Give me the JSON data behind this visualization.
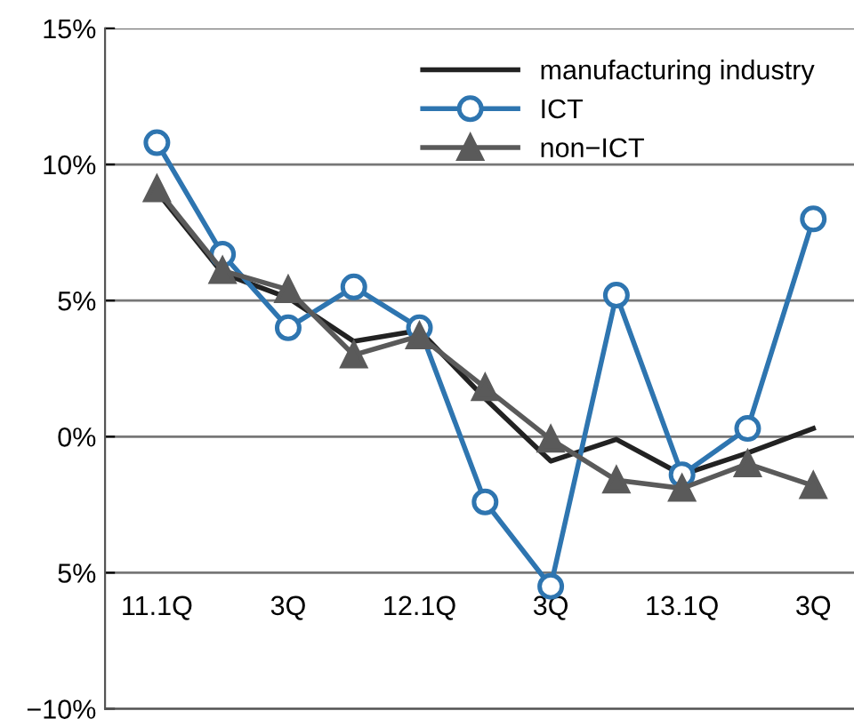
{
  "chart_data": {
    "type": "line",
    "categories": [
      "11.1Q",
      null,
      "3Q",
      null,
      "12.1Q",
      null,
      "3Q",
      null,
      "13.1Q",
      null,
      "3Q"
    ],
    "series": [
      {
        "name": "manufacturing industry",
        "color": "#222222",
        "marker": "none",
        "values": [
          9.0,
          6.0,
          5.1,
          3.5,
          3.9,
          1.4,
          -0.9,
          -0.1,
          -1.4,
          -0.6,
          0.3
        ]
      },
      {
        "name": "ICT",
        "color": "#2e75b0",
        "marker": "circle",
        "values": [
          10.8,
          6.7,
          4.0,
          5.5,
          4.0,
          -2.4,
          -5.5,
          5.2,
          -1.4,
          0.3,
          8.0
        ]
      },
      {
        "name": "non−ICT",
        "color": "#5a5a5a",
        "marker": "triangle",
        "values": [
          9.1,
          6.1,
          5.4,
          3.0,
          3.7,
          1.8,
          -0.1,
          -1.6,
          -1.9,
          -1.0,
          -1.8
        ]
      }
    ],
    "ylim": [
      -10,
      15
    ],
    "yticks": [
      {
        "value": -10,
        "label": "−10%"
      },
      {
        "value": -5,
        "label": "5%"
      },
      {
        "value": 0,
        "label": "0%"
      },
      {
        "value": 5,
        "label": "5%"
      },
      {
        "value": 10,
        "label": "10%"
      },
      {
        "value": 15,
        "label": "15%"
      }
    ],
    "grid": "y",
    "legend": "top right"
  }
}
